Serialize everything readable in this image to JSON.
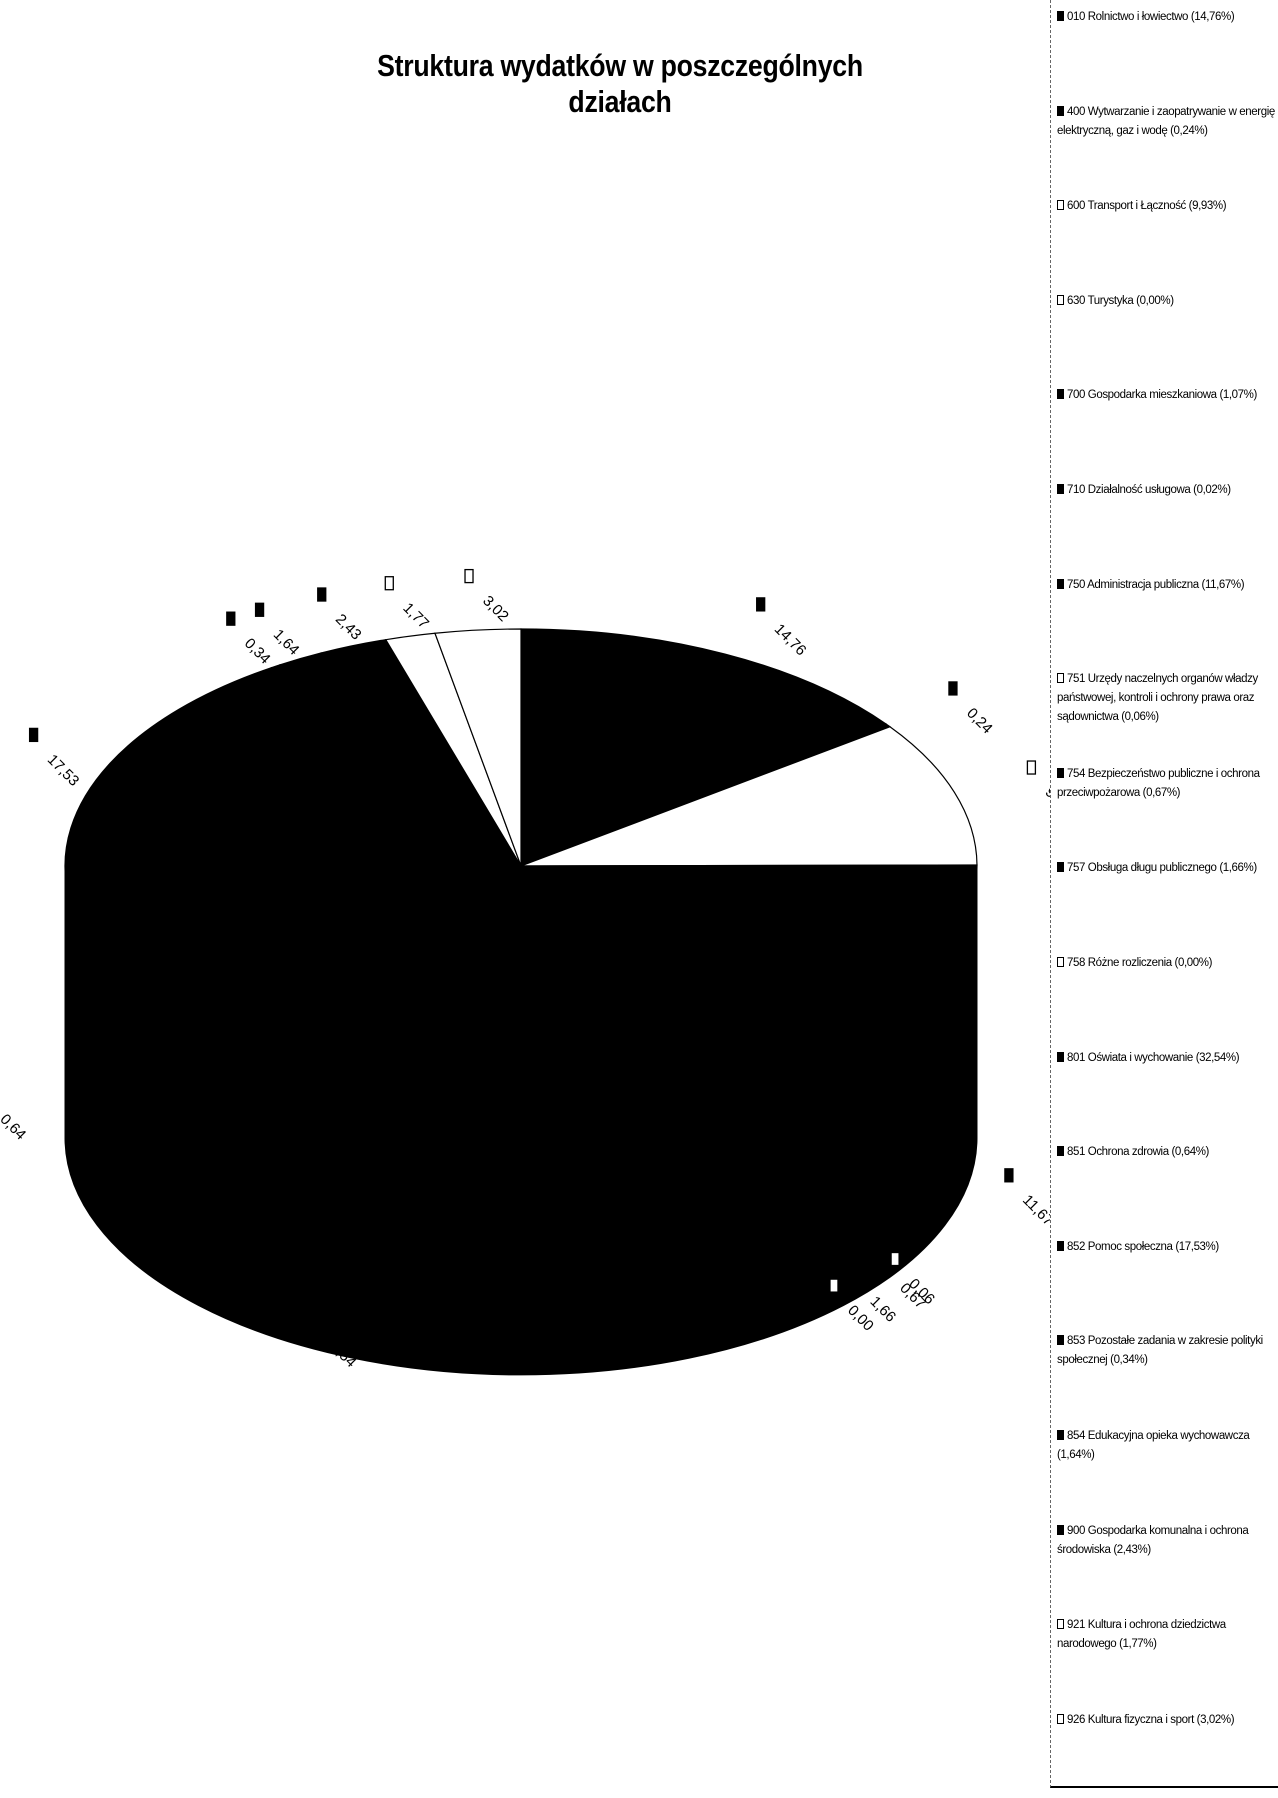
{
  "chart_data": {
    "type": "pie",
    "title": "Struktura wydatków w poszczególnych działach",
    "legend_placement": "right",
    "series": [
      {
        "code": "010",
        "legend": "010 Rolnictwo i łowiectwo (14,76%)",
        "label": "14,76",
        "value": 14.76,
        "color": "#000000"
      },
      {
        "code": "400",
        "legend": "400 Wytwarzanie i zaopatrywanie w energię elektryczną, gaz i wodę (0,24%)",
        "label": "0,24",
        "value": 0.24,
        "color": "#000000"
      },
      {
        "code": "600",
        "legend": "600 Transport i Łączność (9,93%)",
        "label": "9,93",
        "value": 9.93,
        "color": "#ffffff"
      },
      {
        "code": "630",
        "legend": "630 Turystyka (0,00%)",
        "label": "",
        "value": 0.0,
        "color": "#ffffff"
      },
      {
        "code": "700",
        "legend": "700 Gospodarka mieszkaniowa (1,07%)",
        "label": "1,07",
        "value": 1.07,
        "color": "#000000"
      },
      {
        "code": "710",
        "legend": "710 Działalność usługowa (0,02%)",
        "label": "0,02",
        "value": 0.02,
        "color": "#000000"
      },
      {
        "code": "750",
        "legend": "750 Administracja publiczna (11,67%)",
        "label": "11,67",
        "value": 11.67,
        "color": "#000000"
      },
      {
        "code": "751",
        "legend": "751 Urzędy naczelnych organów władzy państwowej, kontroli i ochrony prawa oraz sądownictwa (0,06%)",
        "label": "0,06",
        "value": 0.06,
        "color": "#ffffff"
      },
      {
        "code": "754",
        "legend": "754 Bezpieczeństwo publiczne i ochrona przeciwpożarowa (0,67%)",
        "label": "0,67",
        "value": 0.67,
        "color": "#000000"
      },
      {
        "code": "757",
        "legend": "757 Obsługa długu publicznego (1,66%)",
        "label": "1,66",
        "value": 1.66,
        "color": "#000000"
      },
      {
        "code": "758",
        "legend": "758 Różne rozliczenia (0,00%)",
        "label": "0,00",
        "value": 0.0,
        "color": "#ffffff"
      },
      {
        "code": "801",
        "legend": "801 Oświata i wychowanie (32,54%)",
        "label": "32,54",
        "value": 32.54,
        "color": "#000000"
      },
      {
        "code": "851",
        "legend": "851 Ochrona zdrowia (0,64%)",
        "label": "0,64",
        "value": 0.64,
        "color": "#000000"
      },
      {
        "code": "852",
        "legend": "852 Pomoc społeczna (17,53%)",
        "label": "17,53",
        "value": 17.53,
        "color": "#000000"
      },
      {
        "code": "853",
        "legend": "853 Pozostałe zadania w zakresie polityki społecznej (0,34%)",
        "label": "0,34",
        "value": 0.34,
        "color": "#000000"
      },
      {
        "code": "854",
        "legend": "854 Edukacyjna opieka wychowawcza (1,64%)",
        "label": "1,64",
        "value": 1.64,
        "color": "#000000"
      },
      {
        "code": "900",
        "legend": "900 Gospodarka komunalna i ochrona środowiska (2,43%)",
        "label": "2,43",
        "value": 2.43,
        "color": "#000000"
      },
      {
        "code": "921",
        "legend": "921 Kultura i ochrona dziedzictwa narodowego (1,77%)",
        "label": "1,77",
        "value": 1.77,
        "color": "#ffffff"
      },
      {
        "code": "926",
        "legend": "926 Kultura fizyczna i sport (3,02%)",
        "label": "3,02",
        "value": 3.02,
        "color": "#ffffff"
      }
    ]
  }
}
